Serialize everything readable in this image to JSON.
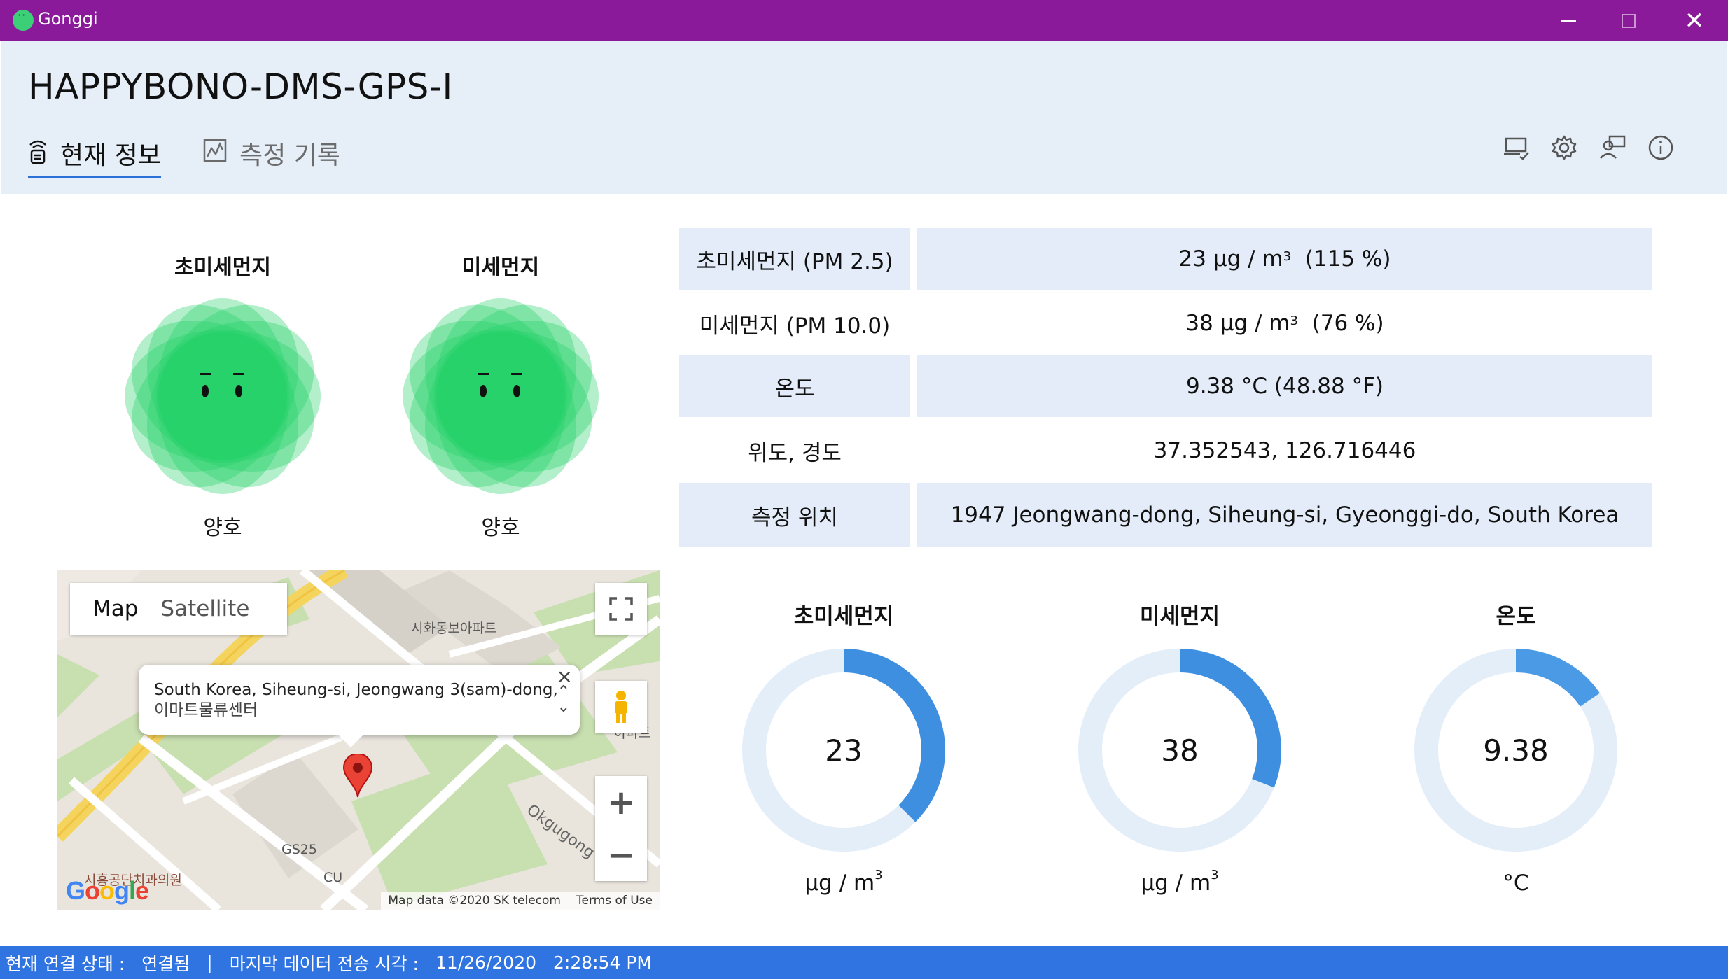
{
  "window": {
    "title": "Gonggi"
  },
  "header": {
    "device_name": "HAPPYBONO-DMS-GPS-I"
  },
  "tabs": [
    {
      "label": "현재 정보",
      "icon": "signal-icon",
      "selected": true
    },
    {
      "label": "측정 기록",
      "icon": "chart-icon",
      "selected": false
    }
  ],
  "header_icons": [
    "device-icon",
    "gear-icon",
    "user-feedback-icon",
    "info-icon"
  ],
  "faces": [
    {
      "label": "초미세먼지",
      "status": "양호",
      "color": "#22d168"
    },
    {
      "label": "미세먼지",
      "status": "양호",
      "color": "#22d168"
    }
  ],
  "info_table": [
    {
      "label": "초미세먼지 (PM 2.5)",
      "value_num": "23",
      "value_unit_pre": "μg / m",
      "value_unit_sup": "3",
      "value_suffix": "(115 %)"
    },
    {
      "label": "미세먼지 (PM 10.0)",
      "value_num": "38",
      "value_unit_pre": "μg / m",
      "value_unit_sup": "3",
      "value_suffix": "(76 %)"
    },
    {
      "label": "온도",
      "value": "9.38 °C (48.88 °F)"
    },
    {
      "label": "위도, 경도",
      "value": "37.352543, 126.716446"
    },
    {
      "label": "측정 위치",
      "value": "1947 Jeongwang-dong, Siheung-si, Gyeonggi-do, South Korea"
    }
  ],
  "map": {
    "type_map": "Map",
    "type_satellite": "Satellite",
    "info_line1": "South Korea, Siheung-si, Jeongwang 3(sam)-dong,",
    "info_line2": "이마트물류센터",
    "attribution": "Map data ©2020 SK telecom",
    "terms": "Terms of Use",
    "labels": {
      "apt": "시화동보아파트",
      "gs25": "GS25",
      "cu": "CU",
      "clinic": "시흥공단치과의원",
      "road": "Okgugong",
      "apt2": "아파트"
    },
    "logo": "Google"
  },
  "gauges": [
    {
      "title": "초미세먼지",
      "value": "23",
      "fraction": 0.375,
      "unit_pre": "μg / m",
      "unit_sup": "3",
      "color": "#3f8fe0"
    },
    {
      "title": "미세먼지",
      "value": "38",
      "fraction": 0.31,
      "unit_pre": "μg / m",
      "unit_sup": "3",
      "color": "#3f8fe0"
    },
    {
      "title": "온도",
      "value": "9.38",
      "fraction": 0.155,
      "unit_pre": "°C",
      "unit_sup": "",
      "color": "#4b9ae6"
    }
  ],
  "status": {
    "conn_label": "현재 연결 상태 :",
    "conn_value": "연결됨",
    "separator": "|",
    "last_label": "마지막 데이터 전송 시각 :",
    "last_date": "11/26/2020",
    "last_time": "2:28:54 PM"
  }
}
